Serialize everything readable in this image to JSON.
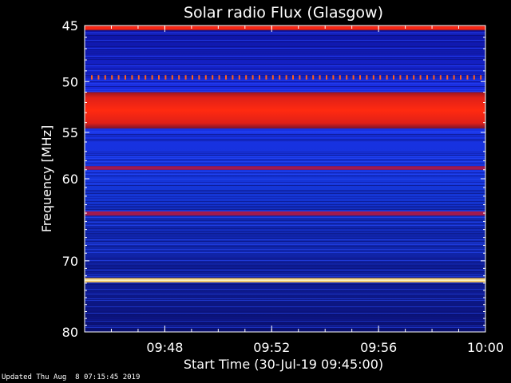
{
  "footer": "Updated Thu Aug  8 07:15:45 2019",
  "chart_data": {
    "type": "heatmap",
    "title": "Solar radio Flux (Glasgow)",
    "xlabel": "Start Time (30-Jul-19 09:45:00)",
    "ylabel": "Frequency [MHz]",
    "xlim": [
      "09:45",
      "10:00"
    ],
    "ylim": [
      45,
      80
    ],
    "x_ticks": [
      "09:48",
      "09:52",
      "09:56",
      "10:00"
    ],
    "y_ticks": [
      45,
      50,
      55,
      60,
      70,
      80
    ],
    "colors": {
      "background": "#000000",
      "low": "#0c0c7a",
      "mid": "#1e3cff",
      "high": "#e8201a",
      "peak": "#fff8b0"
    },
    "bands": [
      {
        "freq_from": 45.0,
        "freq_to": 45.4,
        "level": "high"
      },
      {
        "freq_from": 49.4,
        "freq_to": 49.8,
        "level": "pulsed"
      },
      {
        "freq_from": 51.0,
        "freq_to": 54.6,
        "level": "high"
      },
      {
        "freq_from": 58.6,
        "freq_to": 59.0,
        "level": "medium-high"
      },
      {
        "freq_from": 63.8,
        "freq_to": 64.3,
        "level": "medium-high"
      },
      {
        "freq_from": 72.3,
        "freq_to": 72.9,
        "level": "peak"
      }
    ]
  }
}
